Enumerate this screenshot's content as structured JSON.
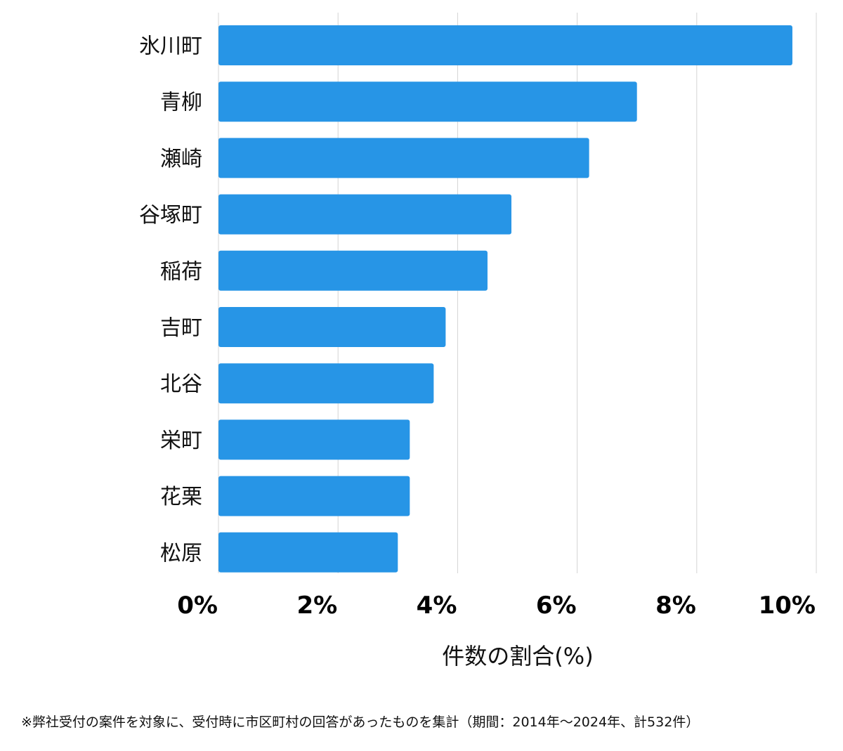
{
  "chart_data": {
    "type": "bar",
    "orientation": "horizontal",
    "categories": [
      "氷川町",
      "青柳",
      "瀬崎",
      "谷塚町",
      "稲荷",
      "吉町",
      "北谷",
      "栄町",
      "花栗",
      "松原"
    ],
    "values": [
      9.6,
      7.0,
      6.2,
      4.9,
      4.5,
      3.8,
      3.6,
      3.2,
      3.2,
      3.0
    ],
    "xlabel": "件数の割合(%)",
    "xlim": [
      0,
      10
    ],
    "xticks": [
      "0%",
      "2%",
      "4%",
      "6%",
      "8%",
      "10%"
    ],
    "grid": "vertical",
    "bar_color": "#2795e6",
    "grid_color": "#d4d4d4"
  },
  "footnote": "※弊社受付の案件を対象に、受付時に市区町村の回答があったものを集計（期間：2014年〜2024年、計532件）"
}
